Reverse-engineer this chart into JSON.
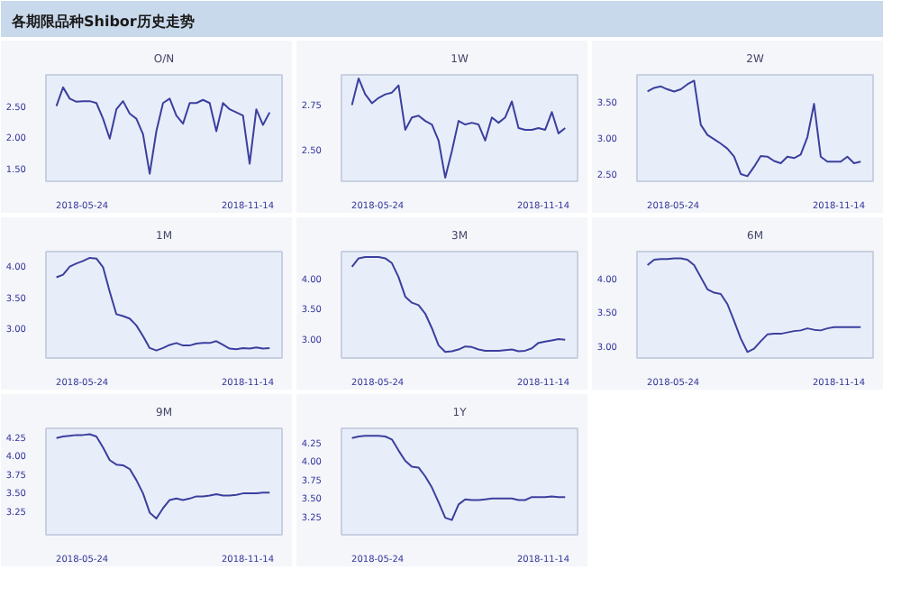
{
  "chart_data": [
    {
      "type": "other",
      "title": "各期限品种Shibor历史走势"
    },
    {
      "type": "line",
      "title": "O/N",
      "color": "#3b3f9e",
      "grid": false,
      "xlim": [
        "2018-04-16",
        "2018-12-20"
      ],
      "xticks": [
        {
          "value": "2018-05-24",
          "label": "2018-05-24"
        },
        {
          "value": "2018-11-14",
          "label": "2018-11-14"
        }
      ],
      "ylim": [
        1.3,
        3.0
      ],
      "yticks": [
        {
          "value": 1.5,
          "label": "1.50"
        },
        {
          "value": 2.0,
          "label": "2.00"
        },
        {
          "value": 2.5,
          "label": "2.50"
        }
      ],
      "x": [
        "2018-04-27",
        "2018-05-04",
        "2018-05-11",
        "2018-05-18",
        "2018-05-25",
        "2018-06-01",
        "2018-06-08",
        "2018-06-15",
        "2018-06-22",
        "2018-06-29",
        "2018-07-06",
        "2018-07-13",
        "2018-07-20",
        "2018-07-27",
        "2018-08-03",
        "2018-08-10",
        "2018-08-17",
        "2018-08-24",
        "2018-08-31",
        "2018-09-07",
        "2018-09-14",
        "2018-09-21",
        "2018-09-28",
        "2018-10-05",
        "2018-10-12",
        "2018-10-19",
        "2018-10-26",
        "2018-11-02",
        "2018-11-09",
        "2018-11-16",
        "2018-11-23",
        "2018-11-30",
        "2018-12-07"
      ],
      "values": [
        2.5,
        2.8,
        2.62,
        2.57,
        2.58,
        2.58,
        2.55,
        2.3,
        1.98,
        2.45,
        2.58,
        2.38,
        2.3,
        2.05,
        1.42,
        2.1,
        2.55,
        2.62,
        2.35,
        2.22,
        2.55,
        2.55,
        2.6,
        2.55,
        2.1,
        2.55,
        2.45,
        2.4,
        2.35,
        1.58,
        2.45,
        2.2,
        2.4
      ]
    },
    {
      "type": "line",
      "title": "1W",
      "color": "#3b3f9e",
      "grid": false,
      "xlim": [
        "2018-04-16",
        "2018-12-20"
      ],
      "xticks": [
        {
          "value": "2018-05-24",
          "label": "2018-05-24"
        },
        {
          "value": "2018-11-14",
          "label": "2018-11-14"
        }
      ],
      "ylim": [
        2.32,
        2.92
      ],
      "yticks": [
        {
          "value": 2.5,
          "label": "2.50"
        },
        {
          "value": 2.75,
          "label": "2.75"
        }
      ],
      "x": [
        "2018-04-27",
        "2018-05-04",
        "2018-05-11",
        "2018-05-18",
        "2018-05-25",
        "2018-06-01",
        "2018-06-08",
        "2018-06-15",
        "2018-06-22",
        "2018-06-29",
        "2018-07-06",
        "2018-07-13",
        "2018-07-20",
        "2018-07-27",
        "2018-08-03",
        "2018-08-10",
        "2018-08-17",
        "2018-08-24",
        "2018-08-31",
        "2018-09-07",
        "2018-09-14",
        "2018-09-21",
        "2018-09-28",
        "2018-10-05",
        "2018-10-12",
        "2018-10-19",
        "2018-10-26",
        "2018-11-02",
        "2018-11-09",
        "2018-11-16",
        "2018-11-23",
        "2018-11-30",
        "2018-12-07"
      ],
      "values": [
        2.75,
        2.9,
        2.81,
        2.76,
        2.79,
        2.81,
        2.82,
        2.86,
        2.61,
        2.68,
        2.69,
        2.66,
        2.64,
        2.55,
        2.34,
        2.49,
        2.66,
        2.64,
        2.65,
        2.64,
        2.55,
        2.68,
        2.65,
        2.68,
        2.77,
        2.62,
        2.61,
        2.61,
        2.62,
        2.61,
        2.71,
        2.59,
        2.62
      ]
    },
    {
      "type": "line",
      "title": "2W",
      "color": "#3b3f9e",
      "grid": false,
      "xlim": [
        "2018-04-16",
        "2018-12-20"
      ],
      "xticks": [
        {
          "value": "2018-05-24",
          "label": "2018-05-24"
        },
        {
          "value": "2018-11-14",
          "label": "2018-11-14"
        }
      ],
      "ylim": [
        2.4,
        3.87
      ],
      "yticks": [
        {
          "value": 2.5,
          "label": "2.50"
        },
        {
          "value": 3.0,
          "label": "3.00"
        },
        {
          "value": 3.5,
          "label": "3.50"
        }
      ],
      "x": [
        "2018-04-27",
        "2018-05-04",
        "2018-05-11",
        "2018-05-18",
        "2018-05-25",
        "2018-06-01",
        "2018-06-08",
        "2018-06-15",
        "2018-06-22",
        "2018-06-29",
        "2018-07-06",
        "2018-07-13",
        "2018-07-20",
        "2018-07-27",
        "2018-08-03",
        "2018-08-10",
        "2018-08-17",
        "2018-08-24",
        "2018-08-31",
        "2018-09-07",
        "2018-09-14",
        "2018-09-21",
        "2018-09-28",
        "2018-10-05",
        "2018-10-12",
        "2018-10-19",
        "2018-10-26",
        "2018-11-02",
        "2018-11-09",
        "2018-11-16",
        "2018-11-23",
        "2018-11-30",
        "2018-12-07"
      ],
      "values": [
        3.64,
        3.69,
        3.71,
        3.67,
        3.64,
        3.67,
        3.74,
        3.79,
        3.18,
        3.04,
        2.98,
        2.92,
        2.85,
        2.74,
        2.5,
        2.47,
        2.6,
        2.75,
        2.74,
        2.68,
        2.65,
        2.74,
        2.72,
        2.77,
        3.01,
        3.47,
        2.74,
        2.67,
        2.67,
        2.67,
        2.74,
        2.65,
        2.67
      ]
    },
    {
      "type": "line",
      "title": "1M",
      "color": "#3b3f9e",
      "grid": false,
      "xlim": [
        "2018-04-16",
        "2018-12-20"
      ],
      "xticks": [
        {
          "value": "2018-05-24",
          "label": "2018-05-24"
        },
        {
          "value": "2018-11-14",
          "label": "2018-11-14"
        }
      ],
      "ylim": [
        2.53,
        4.23
      ],
      "yticks": [
        {
          "value": 3.0,
          "label": "3.00"
        },
        {
          "value": 3.5,
          "label": "3.50"
        },
        {
          "value": 4.0,
          "label": "4.00"
        }
      ],
      "x": [
        "2018-04-27",
        "2018-05-04",
        "2018-05-11",
        "2018-05-18",
        "2018-05-25",
        "2018-06-01",
        "2018-06-08",
        "2018-06-15",
        "2018-06-22",
        "2018-06-29",
        "2018-07-06",
        "2018-07-13",
        "2018-07-20",
        "2018-07-27",
        "2018-08-03",
        "2018-08-10",
        "2018-08-17",
        "2018-08-24",
        "2018-08-31",
        "2018-09-07",
        "2018-09-14",
        "2018-09-21",
        "2018-09-28",
        "2018-10-05",
        "2018-10-12",
        "2018-10-19",
        "2018-10-26",
        "2018-11-02",
        "2018-11-09",
        "2018-11-16",
        "2018-11-23",
        "2018-11-30",
        "2018-12-07"
      ],
      "values": [
        3.82,
        3.86,
        3.99,
        4.04,
        4.08,
        4.13,
        4.12,
        3.98,
        3.59,
        3.23,
        3.2,
        3.16,
        3.05,
        2.88,
        2.69,
        2.65,
        2.69,
        2.74,
        2.77,
        2.73,
        2.73,
        2.76,
        2.77,
        2.77,
        2.8,
        2.74,
        2.68,
        2.67,
        2.69,
        2.68,
        2.7,
        2.68,
        2.69
      ]
    },
    {
      "type": "line",
      "title": "3M",
      "color": "#3b3f9e",
      "grid": false,
      "xlim": [
        "2018-04-16",
        "2018-12-20"
      ],
      "xticks": [
        {
          "value": "2018-05-24",
          "label": "2018-05-24"
        },
        {
          "value": "2018-11-14",
          "label": "2018-11-14"
        }
      ],
      "ylim": [
        2.69,
        4.44
      ],
      "yticks": [
        {
          "value": 3.0,
          "label": "3.00"
        },
        {
          "value": 3.5,
          "label": "3.50"
        },
        {
          "value": 4.0,
          "label": "4.00"
        }
      ],
      "x": [
        "2018-04-27",
        "2018-05-04",
        "2018-05-11",
        "2018-05-18",
        "2018-05-25",
        "2018-06-01",
        "2018-06-08",
        "2018-06-15",
        "2018-06-22",
        "2018-06-29",
        "2018-07-06",
        "2018-07-13",
        "2018-07-20",
        "2018-07-27",
        "2018-08-03",
        "2018-08-10",
        "2018-08-17",
        "2018-08-24",
        "2018-08-31",
        "2018-09-07",
        "2018-09-14",
        "2018-09-21",
        "2018-09-28",
        "2018-10-05",
        "2018-10-12",
        "2018-10-19",
        "2018-10-26",
        "2018-11-02",
        "2018-11-09",
        "2018-11-16",
        "2018-11-23",
        "2018-11-30",
        "2018-12-07"
      ],
      "values": [
        4.19,
        4.33,
        4.35,
        4.35,
        4.35,
        4.33,
        4.25,
        4.02,
        3.7,
        3.6,
        3.56,
        3.42,
        3.18,
        2.9,
        2.79,
        2.8,
        2.83,
        2.88,
        2.87,
        2.83,
        2.81,
        2.81,
        2.81,
        2.82,
        2.83,
        2.8,
        2.81,
        2.85,
        2.94,
        2.96,
        2.98,
        3.0,
        2.99
      ]
    },
    {
      "type": "line",
      "title": "6M",
      "color": "#3b3f9e",
      "grid": false,
      "xlim": [
        "2018-04-16",
        "2018-12-20"
      ],
      "xticks": [
        {
          "value": "2018-05-24",
          "label": "2018-05-24"
        },
        {
          "value": "2018-11-14",
          "label": "2018-11-14"
        }
      ],
      "ylim": [
        2.82,
        4.4
      ],
      "yticks": [
        {
          "value": 3.0,
          "label": "3.00"
        },
        {
          "value": 3.5,
          "label": "3.50"
        },
        {
          "value": 4.0,
          "label": "4.00"
        }
      ],
      "x": [
        "2018-04-27",
        "2018-05-04",
        "2018-05-11",
        "2018-05-18",
        "2018-05-25",
        "2018-06-01",
        "2018-06-08",
        "2018-06-15",
        "2018-06-22",
        "2018-06-29",
        "2018-07-06",
        "2018-07-13",
        "2018-07-20",
        "2018-07-27",
        "2018-08-03",
        "2018-08-10",
        "2018-08-17",
        "2018-08-24",
        "2018-08-31",
        "2018-09-07",
        "2018-09-14",
        "2018-09-21",
        "2018-09-28",
        "2018-10-05",
        "2018-10-12",
        "2018-10-19",
        "2018-10-26",
        "2018-11-02",
        "2018-11-09",
        "2018-11-16",
        "2018-11-23",
        "2018-11-30",
        "2018-12-07"
      ],
      "values": [
        4.2,
        4.28,
        4.29,
        4.29,
        4.3,
        4.3,
        4.28,
        4.2,
        4.02,
        3.84,
        3.79,
        3.77,
        3.62,
        3.37,
        3.11,
        2.91,
        2.96,
        3.07,
        3.17,
        3.18,
        3.18,
        3.2,
        3.22,
        3.23,
        3.26,
        3.24,
        3.23,
        3.26,
        3.28,
        3.28,
        3.28,
        3.28,
        3.28
      ]
    },
    {
      "type": "line",
      "title": "9M",
      "color": "#3b3f9e",
      "grid": false,
      "xlim": [
        "2018-04-16",
        "2018-12-20"
      ],
      "xticks": [
        {
          "value": "2018-05-24",
          "label": "2018-05-24"
        },
        {
          "value": "2018-11-14",
          "label": "2018-11-14"
        }
      ],
      "ylim": [
        2.93,
        4.37
      ],
      "yticks": [
        {
          "value": 3.25,
          "label": "3.25"
        },
        {
          "value": 3.5,
          "label": "3.50"
        },
        {
          "value": 3.75,
          "label": "3.75"
        },
        {
          "value": 4.0,
          "label": "4.00"
        },
        {
          "value": 4.25,
          "label": "4.25"
        }
      ],
      "x": [
        "2018-04-27",
        "2018-05-04",
        "2018-05-11",
        "2018-05-18",
        "2018-05-25",
        "2018-06-01",
        "2018-06-08",
        "2018-06-15",
        "2018-06-22",
        "2018-06-29",
        "2018-07-06",
        "2018-07-13",
        "2018-07-20",
        "2018-07-27",
        "2018-08-03",
        "2018-08-10",
        "2018-08-17",
        "2018-08-24",
        "2018-08-31",
        "2018-09-07",
        "2018-09-14",
        "2018-09-21",
        "2018-09-28",
        "2018-10-05",
        "2018-10-12",
        "2018-10-19",
        "2018-10-26",
        "2018-11-02",
        "2018-11-09",
        "2018-11-16",
        "2018-11-23",
        "2018-11-30",
        "2018-12-07"
      ],
      "values": [
        4.24,
        4.26,
        4.27,
        4.28,
        4.28,
        4.29,
        4.26,
        4.11,
        3.94,
        3.88,
        3.87,
        3.82,
        3.67,
        3.49,
        3.23,
        3.15,
        3.29,
        3.4,
        3.42,
        3.4,
        3.42,
        3.45,
        3.45,
        3.46,
        3.48,
        3.46,
        3.46,
        3.47,
        3.49,
        3.49,
        3.49,
        3.5,
        3.5
      ]
    },
    {
      "type": "line",
      "title": "1Y",
      "color": "#3b3f9e",
      "grid": false,
      "xlim": [
        "2018-04-16",
        "2018-12-20"
      ],
      "xticks": [
        {
          "value": "2018-05-24",
          "label": "2018-05-24"
        },
        {
          "value": "2018-11-14",
          "label": "2018-11-14"
        }
      ],
      "ylim": [
        3.0,
        4.44
      ],
      "yticks": [
        {
          "value": 3.25,
          "label": "3.25"
        },
        {
          "value": 3.5,
          "label": "3.50"
        },
        {
          "value": 3.75,
          "label": "3.75"
        },
        {
          "value": 4.0,
          "label": "4.00"
        },
        {
          "value": 4.25,
          "label": "4.25"
        }
      ],
      "x": [
        "2018-04-27",
        "2018-05-04",
        "2018-05-11",
        "2018-05-18",
        "2018-05-25",
        "2018-06-01",
        "2018-06-08",
        "2018-06-15",
        "2018-06-22",
        "2018-06-29",
        "2018-07-06",
        "2018-07-13",
        "2018-07-20",
        "2018-07-27",
        "2018-08-03",
        "2018-08-10",
        "2018-08-17",
        "2018-08-24",
        "2018-08-31",
        "2018-09-07",
        "2018-09-14",
        "2018-09-21",
        "2018-09-28",
        "2018-10-05",
        "2018-10-12",
        "2018-10-19",
        "2018-10-26",
        "2018-11-02",
        "2018-11-09",
        "2018-11-16",
        "2018-11-23",
        "2018-11-30",
        "2018-12-07"
      ],
      "values": [
        4.31,
        4.33,
        4.34,
        4.34,
        4.34,
        4.33,
        4.29,
        4.14,
        4.0,
        3.92,
        3.91,
        3.79,
        3.64,
        3.44,
        3.23,
        3.2,
        3.41,
        3.48,
        3.47,
        3.47,
        3.48,
        3.49,
        3.49,
        3.49,
        3.49,
        3.47,
        3.47,
        3.51,
        3.51,
        3.51,
        3.52,
        3.51,
        3.51
      ]
    }
  ]
}
